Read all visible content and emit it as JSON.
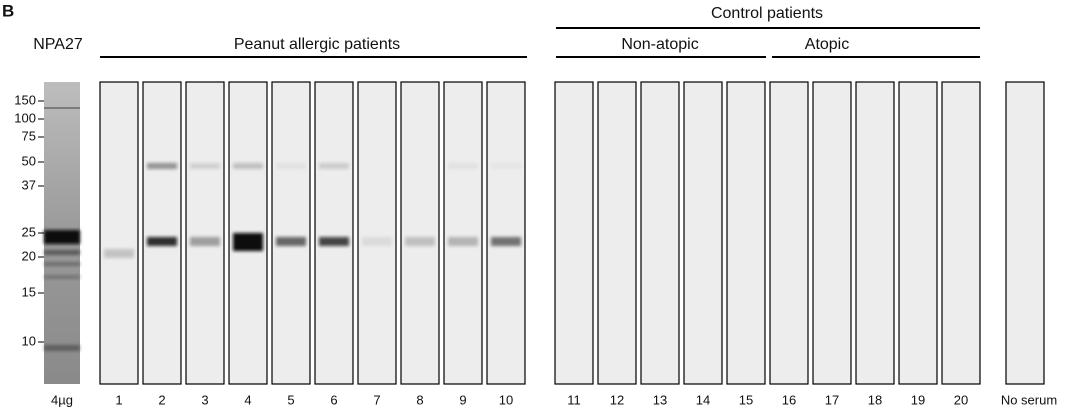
{
  "panel_label": "B",
  "marker_lane": {
    "title": "NPA27",
    "amount": "4µg"
  },
  "mw_markers": [
    "150",
    "100",
    "75",
    "50",
    "37",
    "25",
    "20",
    "15",
    "10"
  ],
  "peanut": {
    "title": "Peanut allergic patients",
    "lanes": [
      "1",
      "2",
      "3",
      "4",
      "5",
      "6",
      "7",
      "8",
      "9",
      "10"
    ]
  },
  "control": {
    "title": "Control patients",
    "subgroups": [
      {
        "title": "Non-atopic"
      },
      {
        "title": "Atopic"
      }
    ],
    "lanes": [
      "11",
      "12",
      "13",
      "14",
      "15",
      "16",
      "17",
      "18",
      "19",
      "20"
    ]
  },
  "no_serum": {
    "label": "No serum"
  }
}
